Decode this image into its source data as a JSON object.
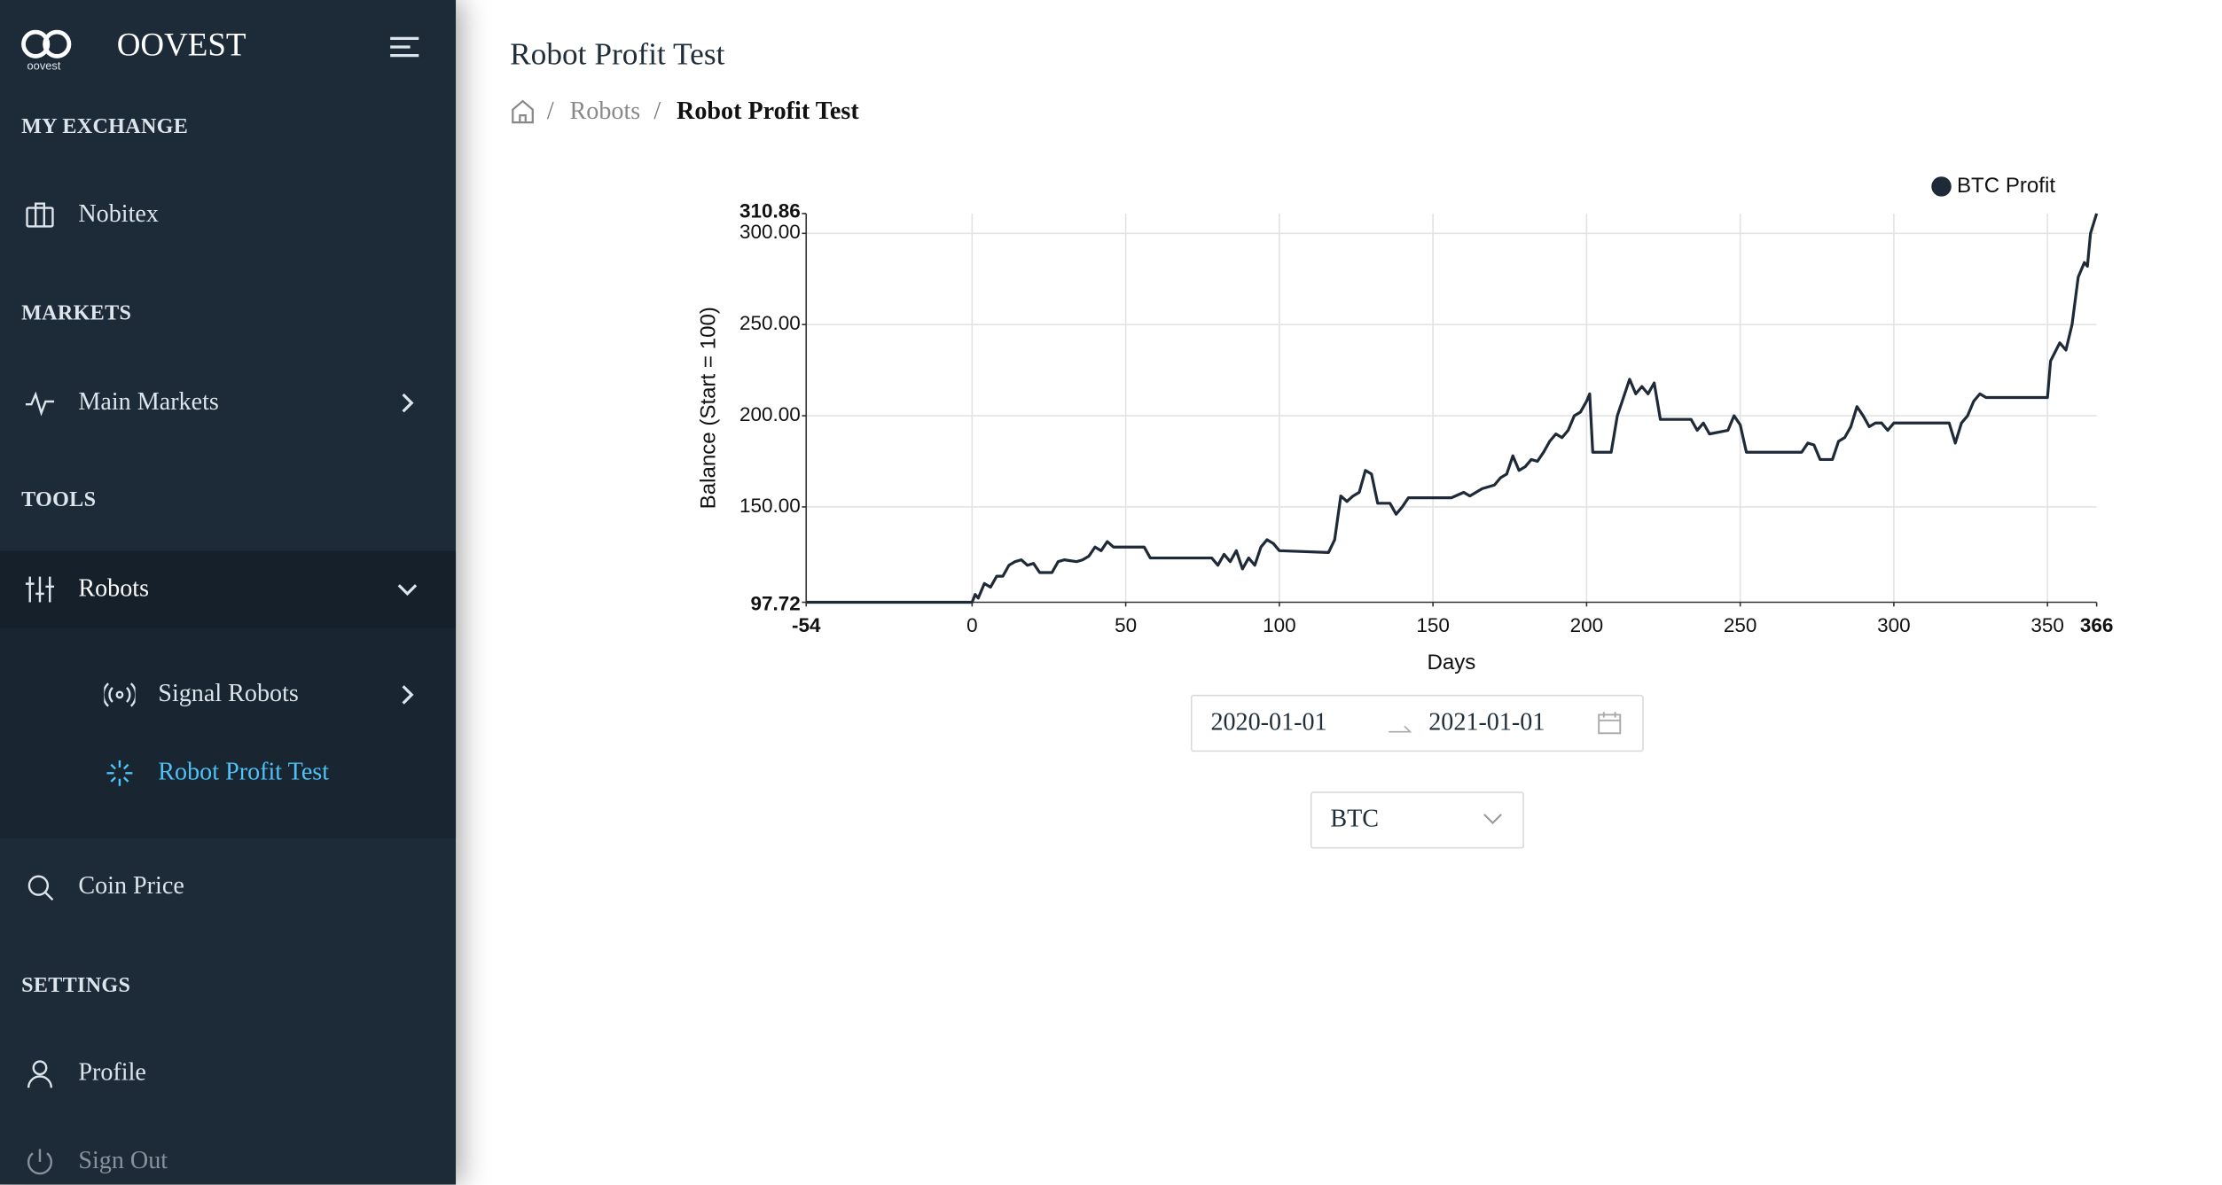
{
  "sidebar": {
    "brand": "OOVEST",
    "logo_caption": "oovest",
    "sections": [
      {
        "title": "MY EXCHANGE",
        "items": [
          "Nobitex"
        ]
      },
      {
        "title": "MARKETS",
        "items": [
          "Main Markets"
        ]
      },
      {
        "title": "TOOLS",
        "items": [
          "Robots",
          "Coin Price"
        ],
        "submenu": [
          "Signal Robots",
          "Robot Profit Test"
        ]
      },
      {
        "title": "SETTINGS",
        "items": [
          "Profile",
          "Sign Out"
        ]
      }
    ]
  },
  "header": {
    "title": "Robot Profit Test",
    "breadcrumb": [
      "Robots",
      "Robot Profit Test"
    ],
    "separator": "/"
  },
  "chart_data": {
    "type": "line",
    "x_label": "Days",
    "y_label": "Balance (Start = 100)",
    "xlim": [
      -54,
      366
    ],
    "ylim": [
      97.72,
      310.86
    ],
    "xticks": [
      -54,
      0,
      50,
      100,
      150,
      200,
      250,
      300,
      350,
      366
    ],
    "yticks": [
      97.72,
      {
        "value": 150,
        "label": "150.00"
      },
      {
        "value": 200,
        "label": "200.00"
      },
      {
        "value": 250,
        "label": "250.00"
      },
      {
        "value": 300,
        "label": "300.00"
      },
      310.86
    ],
    "grid": true,
    "legend": "top-right",
    "x": [
      -54,
      0,
      1,
      2,
      4,
      6,
      8,
      10,
      12,
      14,
      16,
      18,
      20,
      22,
      26,
      28,
      30,
      34,
      36,
      38,
      40,
      42,
      44,
      46,
      56,
      58,
      78,
      80,
      82,
      84,
      86,
      88,
      90,
      92,
      94,
      96,
      98,
      100,
      116,
      118,
      120,
      122,
      124,
      126,
      128,
      130,
      132,
      136,
      138,
      140,
      142,
      156,
      160,
      162,
      166,
      170,
      172,
      174,
      176,
      178,
      180,
      182,
      184,
      186,
      188,
      190,
      192,
      194,
      196,
      198,
      200,
      201,
      202,
      208,
      210,
      212,
      214,
      216,
      218,
      220,
      222,
      224,
      234,
      236,
      238,
      240,
      246,
      248,
      250,
      252,
      268,
      270,
      272,
      274,
      276,
      280,
      282,
      284,
      286,
      288,
      290,
      292,
      294,
      296,
      298,
      300,
      302,
      318,
      320,
      322,
      324,
      326,
      328,
      330,
      350,
      351,
      354,
      356,
      358,
      360,
      362,
      363,
      364,
      366
    ],
    "series": [
      {
        "name": "BTC Profit",
        "color": "#1e2a38",
        "values": [
          97.72,
          97.72,
          102,
          100,
          108,
          106,
          112,
          112,
          118,
          120,
          121,
          118,
          119,
          114,
          114,
          120,
          121,
          120,
          121,
          123,
          128,
          126,
          131,
          128,
          128,
          122,
          122,
          118,
          124,
          120,
          126,
          116,
          122,
          118,
          128,
          132,
          130,
          126,
          125,
          132,
          156,
          153,
          156,
          158,
          170,
          168,
          152,
          152,
          146,
          150,
          155,
          155,
          158,
          156,
          160,
          162,
          166,
          168,
          178,
          170,
          172,
          176,
          175,
          180,
          186,
          190,
          188,
          192,
          200,
          202,
          208,
          212,
          180,
          180,
          200,
          210,
          220,
          212,
          216,
          212,
          218,
          198,
          198,
          192,
          196,
          190,
          192,
          200,
          195,
          180,
          180,
          180,
          185,
          184,
          176,
          176,
          186,
          188,
          194,
          205,
          200,
          194,
          196,
          196,
          192,
          196,
          196,
          196,
          185,
          196,
          200,
          208,
          212,
          210,
          210,
          230,
          240,
          236,
          250,
          276,
          284,
          282,
          300,
          310.86
        ]
      }
    ]
  },
  "controls": {
    "date_start": "2020-01-01",
    "date_end": "2021-01-01",
    "asset": "BTC"
  }
}
